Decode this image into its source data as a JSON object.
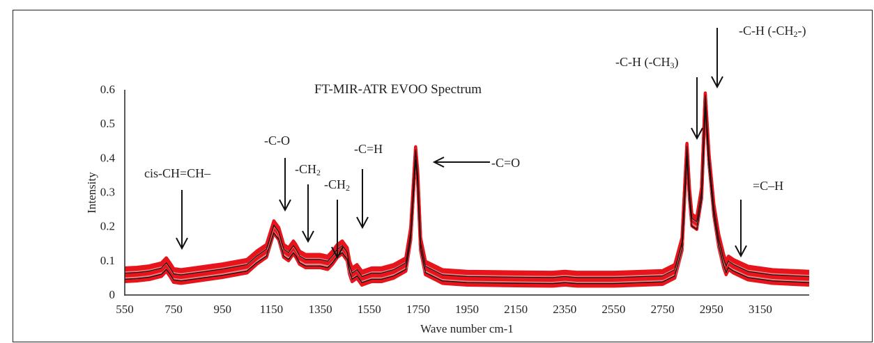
{
  "chart_data": {
    "type": "line",
    "title": "FT-MIR-ATR EVOO Spectrum",
    "xlabel": "Wave number cm-1",
    "ylabel": "Intensity",
    "xlim": [
      550,
      3350
    ],
    "ylim": [
      0,
      0.6
    ],
    "x_ticks": [
      "550",
      "750",
      "950",
      "1150",
      "1350",
      "1550",
      "1750",
      "1950",
      "2150",
      "2350",
      "2550",
      "2750",
      "2950",
      "3150"
    ],
    "y_ticks": [
      "0",
      "0.1",
      "0.2",
      "0.3",
      "0.4",
      "0.5",
      "0.6"
    ],
    "colors": {
      "spectra": "#e8141c",
      "spectra_light": "#f08080",
      "reference": "#111111"
    },
    "series": [
      {
        "x": [
          550,
          600,
          650,
          700,
          720,
          735,
          750,
          780,
          850,
          950,
          1050,
          1090,
          1110,
          1130,
          1160,
          1180,
          1200,
          1220,
          1240,
          1250,
          1265,
          1290,
          1320,
          1350,
          1380,
          1400,
          1420,
          1440,
          1460,
          1470,
          1480,
          1500,
          1520,
          1560,
          1600,
          1650,
          1700,
          1720,
          1730,
          1740,
          1748,
          1760,
          1780,
          1850,
          1950,
          2150,
          2300,
          2350,
          2400,
          2550,
          2750,
          2800,
          2830,
          2850,
          2860,
          2870,
          2890,
          2910,
          2925,
          2940,
          2960,
          2980,
          3000,
          3010,
          3020,
          3040,
          3100,
          3200,
          3350
        ],
        "values": [
          0.06,
          0.062,
          0.066,
          0.075,
          0.09,
          0.075,
          0.058,
          0.055,
          0.062,
          0.072,
          0.085,
          0.11,
          0.12,
          0.13,
          0.2,
          0.18,
          0.13,
          0.12,
          0.14,
          0.13,
          0.11,
          0.1,
          0.1,
          0.1,
          0.095,
          0.11,
          0.13,
          0.14,
          0.12,
          0.08,
          0.06,
          0.07,
          0.05,
          0.06,
          0.06,
          0.07,
          0.09,
          0.18,
          0.3,
          0.42,
          0.35,
          0.15,
          0.08,
          0.055,
          0.05,
          0.048,
          0.047,
          0.05,
          0.047,
          0.047,
          0.052,
          0.07,
          0.15,
          0.43,
          0.3,
          0.22,
          0.21,
          0.3,
          0.58,
          0.4,
          0.25,
          0.16,
          0.1,
          0.08,
          0.095,
          0.085,
          0.065,
          0.055,
          0.05
        ]
      }
    ],
    "annotations": [
      {
        "label": "cis-CH=CH–",
        "x": 730
      },
      {
        "label": "-C-O",
        "x": 1150
      },
      {
        "label": "-CH2",
        "x": 1240
      },
      {
        "label": "-CH2",
        "x": 1370
      },
      {
        "label": "-C=H",
        "x": 1460
      },
      {
        "label": "-C=O",
        "x": 1748
      },
      {
        "label": "-C-H (-CH3)",
        "x": 2850
      },
      {
        "label": "-C-H (-CH2-)",
        "x": 2925
      },
      {
        "label": "=C–H",
        "x": 3010
      }
    ]
  }
}
